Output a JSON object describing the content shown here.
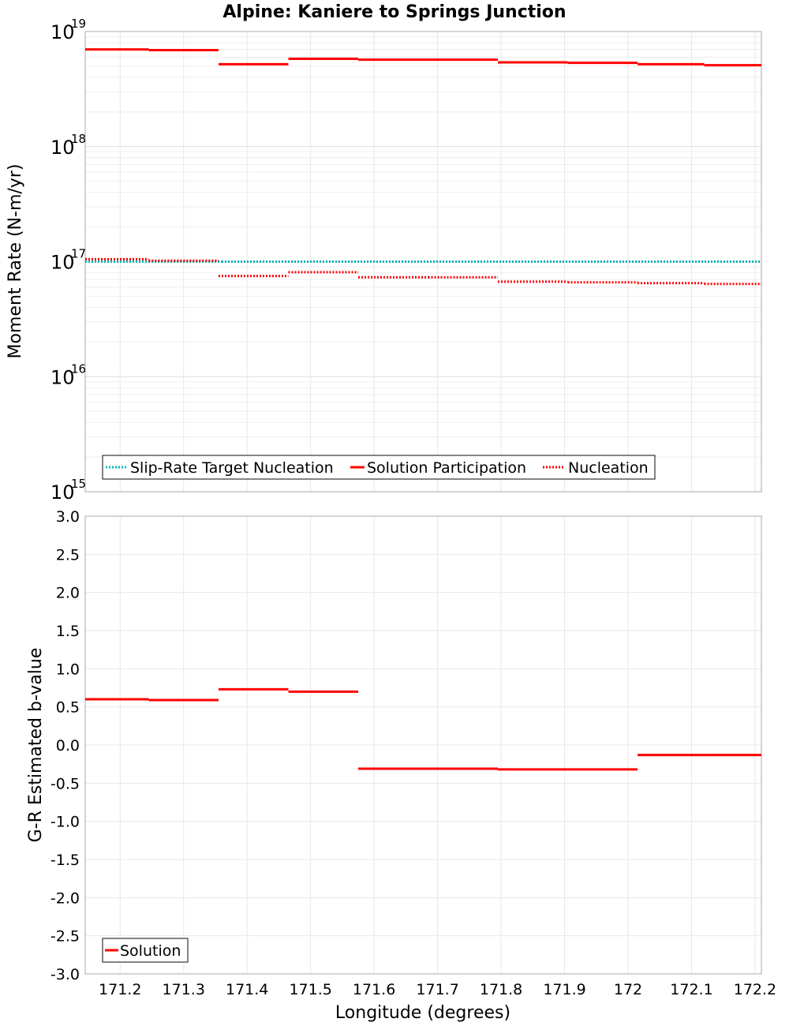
{
  "chart_data": [
    {
      "type": "line",
      "title": "Alpine: Kaniere to Springs Junction",
      "xlabel": "Longitude (degrees)",
      "ylabel": "Moment Rate (N-m/yr)",
      "yscale": "log",
      "ylim": [
        1000000000000000.0,
        1e+19
      ],
      "xlim": [
        171.145,
        172.21
      ],
      "ytick_bases": [
        "10",
        "10",
        "10",
        "10",
        "10"
      ],
      "ytick_exponents": [
        "15",
        "16",
        "17",
        "18",
        "19"
      ],
      "legend_position": "bottom-left",
      "series": [
        {
          "name": "Slip-Rate Target Nucleation",
          "color": "#00b4b4",
          "style": "dotted",
          "segments": [
            [
              171.145,
              171.36,
              1e+17
            ],
            [
              171.36,
              172.21,
              1e+17
            ]
          ]
        },
        {
          "name": "Solution Participation",
          "color": "#ff0000",
          "style": "solid",
          "segments": [
            [
              171.145,
              171.245,
              7e+18
            ],
            [
              171.245,
              171.355,
              6.9e+18
            ],
            [
              171.355,
              171.465,
              5.2e+18
            ],
            [
              171.465,
              171.575,
              5.8e+18
            ],
            [
              171.575,
              171.685,
              5.7e+18
            ],
            [
              171.685,
              171.795,
              5.7e+18
            ],
            [
              171.795,
              171.905,
              5.4e+18
            ],
            [
              171.905,
              172.015,
              5.35e+18
            ],
            [
              172.015,
              172.12,
              5.2e+18
            ],
            [
              172.12,
              172.21,
              5.1e+18
            ]
          ]
        },
        {
          "name": "Nucleation",
          "color": "#ff0000",
          "style": "dotted",
          "segments": [
            [
              171.145,
              171.245,
              1.05e+17
            ],
            [
              171.245,
              171.355,
              1.02e+17
            ],
            [
              171.355,
              171.465,
              7.5e+16
            ],
            [
              171.465,
              171.575,
              8.1e+16
            ],
            [
              171.575,
              171.685,
              7.3e+16
            ],
            [
              171.685,
              171.795,
              7.3e+16
            ],
            [
              171.795,
              171.905,
              6.7e+16
            ],
            [
              171.905,
              172.015,
              6.6e+16
            ],
            [
              172.015,
              172.12,
              6.5e+16
            ],
            [
              172.12,
              172.21,
              6.4e+16
            ]
          ]
        }
      ]
    },
    {
      "type": "line",
      "xlabel": "Longitude (degrees)",
      "ylabel": "G-R Estimated b-value",
      "ylim": [
        -3.0,
        3.0
      ],
      "xlim": [
        171.145,
        172.21
      ],
      "y_ticks": [
        "-3.0",
        "-2.5",
        "-2.0",
        "-1.5",
        "-1.0",
        "-0.5",
        "0.0",
        "0.5",
        "1.0",
        "1.5",
        "2.0",
        "2.5",
        "3.0"
      ],
      "x_ticks": [
        "171.2",
        "171.3",
        "171.4",
        "171.5",
        "171.6",
        "171.7",
        "171.8",
        "171.9",
        "172",
        "172.1",
        "172.2"
      ],
      "legend_position": "bottom-left",
      "series": [
        {
          "name": "Solution",
          "color": "#ff0000",
          "style": "solid",
          "segments": [
            [
              171.145,
              171.245,
              0.6
            ],
            [
              171.245,
              171.355,
              0.59
            ],
            [
              171.355,
              171.465,
              0.73
            ],
            [
              171.465,
              171.575,
              0.7
            ],
            [
              171.575,
              171.685,
              -0.31
            ],
            [
              171.685,
              171.795,
              -0.31
            ],
            [
              171.795,
              171.905,
              -0.32
            ],
            [
              171.905,
              172.015,
              -0.32
            ],
            [
              172.015,
              172.12,
              -0.13
            ],
            [
              172.12,
              172.21,
              -0.13
            ]
          ]
        }
      ]
    }
  ]
}
